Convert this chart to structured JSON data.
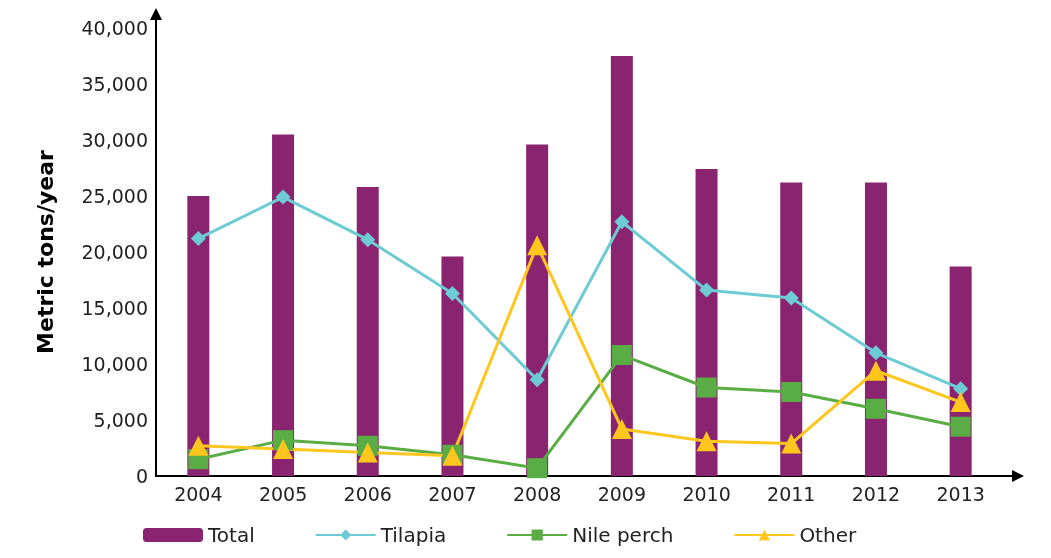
{
  "chart_data": {
    "type": "bar",
    "ylabel": "Metric tons/year",
    "categories": [
      "2004",
      "2005",
      "2006",
      "2007",
      "2008",
      "2009",
      "2010",
      "2011",
      "2012",
      "2013"
    ],
    "series": [
      {
        "name": "Total",
        "color": "#8b2470",
        "values": [
          25000,
          30500,
          25800,
          19600,
          29600,
          37500,
          27400,
          26200,
          26200,
          18700
        ]
      },
      {
        "name": "Tilapia",
        "type": "line",
        "marker": "diamond",
        "color": "#6dcbd3",
        "values": [
          21200,
          24900,
          21100,
          16300,
          8600,
          22700,
          16600,
          15900,
          11000,
          7800
        ]
      },
      {
        "name": "Nile perch",
        "type": "line",
        "marker": "square",
        "color": "#5aac44",
        "values": [
          1500,
          3200,
          2700,
          1900,
          700,
          10800,
          7900,
          7500,
          6000,
          4400
        ]
      },
      {
        "name": "Other",
        "type": "line",
        "marker": "triangle",
        "color": "#ffc61e",
        "values": [
          2700,
          2400,
          2100,
          1800,
          20600,
          4200,
          3100,
          2900,
          9400,
          6600
        ]
      }
    ],
    "ylim": [
      0,
      40000
    ],
    "yticks": [
      0,
      {
        "value": 5000,
        "label": "5,000"
      },
      {
        "value": 10000,
        "label": "10,000"
      },
      {
        "value": 15000,
        "label": "15,000"
      },
      {
        "value": 20000,
        "label": "20,000"
      },
      {
        "value": 25000,
        "label": "25,000"
      },
      {
        "value": 30000,
        "label": "30,000"
      },
      {
        "value": 35000,
        "label": "35,000"
      },
      {
        "value": 40000,
        "label": "40,000"
      }
    ],
    "grid": false,
    "legend": "bottom"
  }
}
